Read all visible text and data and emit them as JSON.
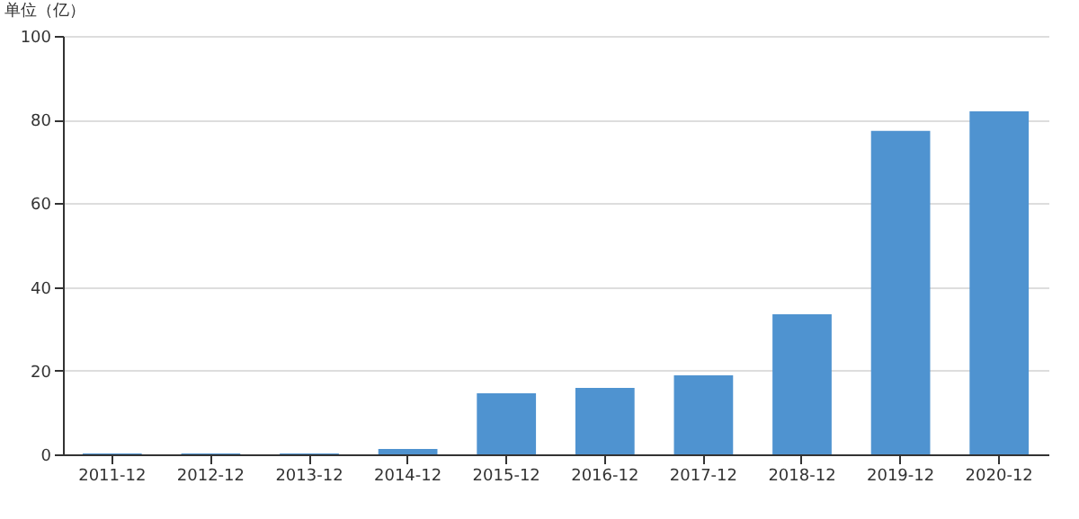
{
  "chart_data": {
    "type": "bar",
    "ylabel": "单位（亿）",
    "categories": [
      "2011-12",
      "2012-12",
      "2013-12",
      "2014-12",
      "2015-12",
      "2016-12",
      "2017-12",
      "2018-12",
      "2019-12",
      "2020-12"
    ],
    "values": [
      0.2,
      0.2,
      0.2,
      1.3,
      14.6,
      15.9,
      18.9,
      33.5,
      77.3,
      82.0
    ],
    "color": "#4f93d0",
    "ylim": [
      0,
      100
    ],
    "yticks": [
      0,
      20,
      40,
      60,
      80,
      100
    ],
    "grid": "y"
  }
}
